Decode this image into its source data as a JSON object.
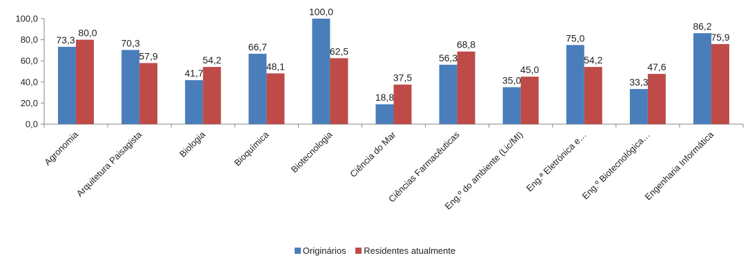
{
  "chart_data": {
    "type": "bar",
    "categories": [
      "Agronomia",
      "Arquitetura Paisagista",
      "Biologia",
      "Bioquímica",
      "Biotecnologia",
      "Ciência do Mar",
      "Ciências Farmacêuticas",
      "Eng.º do ambiente (Lic/MI)",
      "Eng.ª Eletrónica e…",
      "Eng.º Biotecnológica…",
      "Engenharia Informática"
    ],
    "series": [
      {
        "name": "Originários",
        "color": "#4a7ebb",
        "values": [
          73.3,
          70.3,
          41.7,
          66.7,
          100.0,
          18.8,
          56.3,
          35.0,
          75.0,
          33.3,
          86.2
        ],
        "labels": [
          "73,3",
          "70,3",
          "41,7",
          "66,7",
          "100,0",
          "18,8",
          "56,3",
          "35,0",
          "75,0",
          "33,3",
          "86,2"
        ]
      },
      {
        "name": "Residentes atualmente",
        "color": "#be4b48",
        "values": [
          80.0,
          57.9,
          54.2,
          48.1,
          62.5,
          37.5,
          68.8,
          45.0,
          54.2,
          47.6,
          75.9
        ],
        "labels": [
          "80,0",
          "57,9",
          "54,2",
          "48,1",
          "62,5",
          "37,5",
          "68,8",
          "45,0",
          "54,2",
          "47,6",
          "75,9"
        ]
      }
    ],
    "ylim": [
      0,
      100
    ],
    "yticks": [
      "0,0",
      "20,0",
      "40,0",
      "60,0",
      "80,0",
      "100,0"
    ],
    "title": "",
    "xlabel": "",
    "ylabel": "",
    "grid": false,
    "legend": "bottom"
  }
}
